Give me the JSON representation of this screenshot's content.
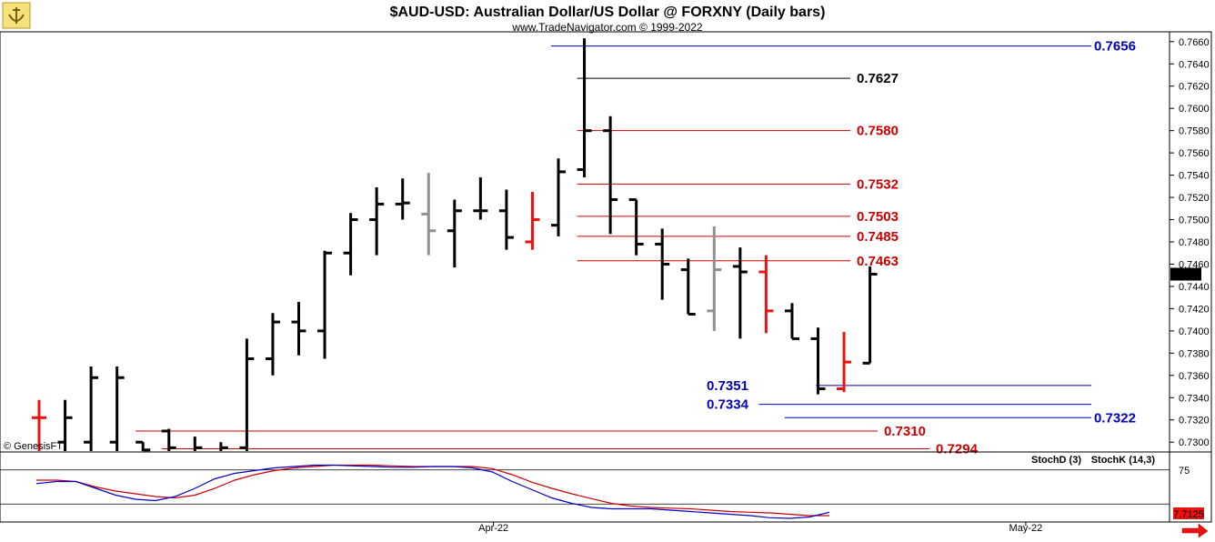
{
  "header": {
    "title": "$AUD-USD:  Australian Dollar/US Dollar @ FORXNY  (Daily bars)",
    "subtitle": "www.TradeNavigator.com © 1999-2022",
    "watermark": "© GenesisFT"
  },
  "colors": {
    "up": "#000000",
    "down": "#ee1111",
    "neutral": "#909090",
    "support": "#0000bb",
    "resistance": "#cc0000",
    "stochD": "#cc0000",
    "stochK": "#0000cc"
  },
  "chart_data": [
    {
      "type": "ohlc",
      "ylim": [
        0.7292,
        0.7668
      ],
      "y_ticks": [
        "0.7660",
        "0.7640",
        "0.7620",
        "0.7600",
        "0.7580",
        "0.7560",
        "0.7540",
        "0.7520",
        "0.7500",
        "0.7480",
        "0.7460",
        "0.7440",
        "0.7420",
        "0.7400",
        "0.7380",
        "0.7360",
        "0.7340",
        "0.7320",
        "0.7300"
      ],
      "x_labels": [
        {
          "label": "Apr-22",
          "bar_index": 17.5
        },
        {
          "label": "May-22",
          "bar_index": 38.0
        }
      ],
      "last_price": "0.7451",
      "bars": [
        {
          "o": 0.7322,
          "h": 0.7338,
          "l": 0.7285,
          "c": 0.7322,
          "color": "down"
        },
        {
          "o": 0.73,
          "h": 0.7338,
          "l": 0.728,
          "c": 0.7322,
          "color": "up"
        },
        {
          "o": 0.73,
          "h": 0.7368,
          "l": 0.729,
          "c": 0.7358,
          "color": "up"
        },
        {
          "o": 0.73,
          "h": 0.7368,
          "l": 0.7285,
          "c": 0.7358,
          "color": "up"
        },
        {
          "o": 0.73,
          "h": 0.73,
          "l": 0.7285,
          "c": 0.7293,
          "color": "up"
        },
        {
          "o": 0.731,
          "h": 0.7312,
          "l": 0.7285,
          "c": 0.7295,
          "color": "up"
        },
        {
          "o": 0.729,
          "h": 0.7305,
          "l": 0.728,
          "c": 0.7295,
          "color": "up"
        },
        {
          "o": 0.729,
          "h": 0.73,
          "l": 0.728,
          "c": 0.7295,
          "color": "up"
        },
        {
          "o": 0.7295,
          "h": 0.7393,
          "l": 0.7287,
          "c": 0.7375,
          "color": "up"
        },
        {
          "o": 0.7375,
          "h": 0.7416,
          "l": 0.736,
          "c": 0.7408,
          "color": "up"
        },
        {
          "o": 0.7408,
          "h": 0.7426,
          "l": 0.7378,
          "c": 0.74,
          "color": "up"
        },
        {
          "o": 0.74,
          "h": 0.7472,
          "l": 0.7375,
          "c": 0.747,
          "color": "up"
        },
        {
          "o": 0.747,
          "h": 0.7506,
          "l": 0.745,
          "c": 0.75,
          "color": "up"
        },
        {
          "o": 0.75,
          "h": 0.7529,
          "l": 0.7468,
          "c": 0.7514,
          "color": "up"
        },
        {
          "o": 0.7514,
          "h": 0.7537,
          "l": 0.75,
          "c": 0.7515,
          "color": "up"
        },
        {
          "o": 0.7505,
          "h": 0.7542,
          "l": 0.7468,
          "c": 0.749,
          "color": "neutral"
        },
        {
          "o": 0.749,
          "h": 0.7518,
          "l": 0.7457,
          "c": 0.7508,
          "color": "up"
        },
        {
          "o": 0.7508,
          "h": 0.7538,
          "l": 0.75,
          "c": 0.7508,
          "color": "up"
        },
        {
          "o": 0.7508,
          "h": 0.7527,
          "l": 0.7473,
          "c": 0.7484,
          "color": "up"
        },
        {
          "o": 0.748,
          "h": 0.7525,
          "l": 0.7473,
          "c": 0.75,
          "color": "down"
        },
        {
          "o": 0.7495,
          "h": 0.7555,
          "l": 0.7485,
          "c": 0.7543,
          "color": "up"
        },
        {
          "o": 0.7545,
          "h": 0.7663,
          "l": 0.7538,
          "c": 0.758,
          "color": "up"
        },
        {
          "o": 0.758,
          "h": 0.7593,
          "l": 0.7487,
          "c": 0.7518,
          "color": "up"
        },
        {
          "o": 0.7518,
          "h": 0.7518,
          "l": 0.7468,
          "c": 0.7478,
          "color": "up"
        },
        {
          "o": 0.7478,
          "h": 0.7492,
          "l": 0.7428,
          "c": 0.746,
          "color": "up"
        },
        {
          "o": 0.7455,
          "h": 0.7465,
          "l": 0.7415,
          "c": 0.7415,
          "color": "up"
        },
        {
          "o": 0.7418,
          "h": 0.7494,
          "l": 0.74,
          "c": 0.7455,
          "color": "neutral"
        },
        {
          "o": 0.7458,
          "h": 0.7475,
          "l": 0.7393,
          "c": 0.7453,
          "color": "up"
        },
        {
          "o": 0.7453,
          "h": 0.7468,
          "l": 0.7398,
          "c": 0.7418,
          "color": "down"
        },
        {
          "o": 0.7418,
          "h": 0.7425,
          "l": 0.7393,
          "c": 0.7393,
          "color": "up"
        },
        {
          "o": 0.7393,
          "h": 0.7403,
          "l": 0.7343,
          "c": 0.7348,
          "color": "up"
        },
        {
          "o": 0.7348,
          "h": 0.7399,
          "l": 0.7345,
          "c": 0.7372,
          "color": "down"
        },
        {
          "o": 0.7371,
          "h": 0.7458,
          "l": 0.7371,
          "c": 0.7451,
          "color": "up"
        }
      ],
      "levels": [
        {
          "label": "0.7656",
          "value": 0.7656,
          "color": "support",
          "start_bar": 20.0,
          "label_pos": "right"
        },
        {
          "label": "0.7627",
          "value": 0.7627,
          "color": "up",
          "start_bar": 21.0,
          "label_pos": "mid"
        },
        {
          "label": "0.7580",
          "value": 0.758,
          "color": "resistance",
          "start_bar": 21.0,
          "label_pos": "mid"
        },
        {
          "label": "0.7532",
          "value": 0.7532,
          "color": "resistance",
          "start_bar": 21.0,
          "label_pos": "mid"
        },
        {
          "label": "0.7503",
          "value": 0.7503,
          "color": "resistance",
          "start_bar": 21.0,
          "label_pos": "mid"
        },
        {
          "label": "0.7485",
          "value": 0.7485,
          "color": "resistance",
          "start_bar": 21.0,
          "label_pos": "mid"
        },
        {
          "label": "0.7463",
          "value": 0.7463,
          "color": "resistance",
          "start_bar": 21.0,
          "label_pos": "mid"
        },
        {
          "label": "0.7351",
          "value": 0.7351,
          "color": "support",
          "start_bar": 30.2,
          "label_pos": "left"
        },
        {
          "label": "0.7334",
          "value": 0.7334,
          "color": "support",
          "start_bar": 28.0,
          "label_pos": "left"
        },
        {
          "label": "0.7322",
          "value": 0.7322,
          "color": "support",
          "start_bar": 29.0,
          "label_pos": "right"
        },
        {
          "label": "0.7310",
          "value": 0.731,
          "color": "resistance",
          "start_bar": 4.0,
          "label_pos": "mid2"
        },
        {
          "label": "0.7294",
          "value": 0.7294,
          "color": "resistance",
          "start_bar": 5.0,
          "label_pos": "far"
        }
      ]
    },
    {
      "type": "line",
      "legend": [
        "StochD (3)",
        "StochK (14,3)"
      ],
      "ylim": [
        0,
        100
      ],
      "y_ticks": [
        "75"
      ],
      "hlines": [
        75,
        25
      ],
      "last_value": "7.7125",
      "series": [
        {
          "key": "stochD",
          "values": [
            60,
            60,
            58,
            50,
            44,
            40,
            36,
            34,
            38,
            48,
            60,
            68,
            74,
            78,
            80,
            82,
            82,
            82,
            81,
            80,
            80,
            80,
            80,
            77,
            68,
            57,
            48,
            40,
            33,
            26,
            22,
            20,
            19,
            18,
            16,
            14,
            13,
            12,
            10,
            8,
            8
          ]
        },
        {
          "key": "stochK",
          "values": [
            55,
            58,
            58,
            48,
            38,
            32,
            30,
            36,
            48,
            62,
            70,
            74,
            78,
            80,
            82,
            82,
            81,
            80,
            79,
            79,
            80,
            80,
            78,
            72,
            58,
            46,
            34,
            26,
            20,
            18,
            18,
            18,
            16,
            14,
            12,
            10,
            8,
            5,
            4,
            6,
            13
          ]
        }
      ]
    }
  ]
}
